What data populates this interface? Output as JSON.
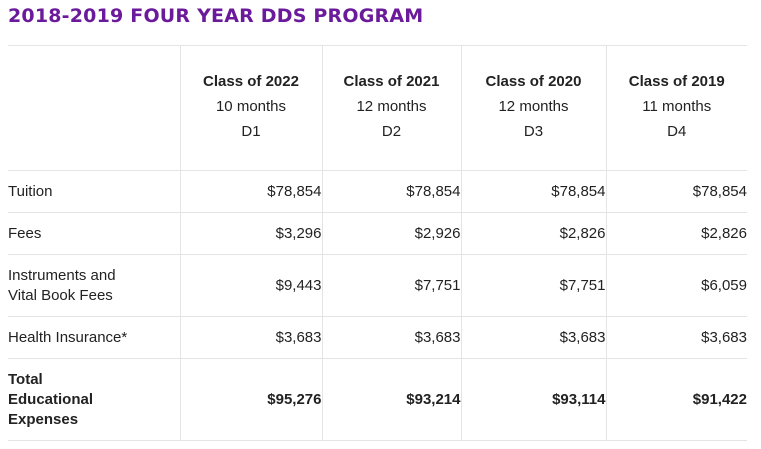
{
  "title": "2018-2019 FOUR YEAR DDS PROGRAM",
  "columns": [
    {
      "class": "Class of 2022",
      "duration": "10 months",
      "code": "D1"
    },
    {
      "class": "Class of 2021",
      "duration": "12 months",
      "code": "D2"
    },
    {
      "class": "Class of 2020",
      "duration": "12 months",
      "code": "D3"
    },
    {
      "class": "Class of 2019",
      "duration": "11 months",
      "code": "D4"
    }
  ],
  "rows": [
    {
      "label": "Tuition",
      "values": [
        "$78,854",
        "$78,854",
        "$78,854",
        "$78,854"
      ]
    },
    {
      "label": "Fees",
      "values": [
        "$3,296",
        "$2,926",
        "$2,826",
        "$2,826"
      ]
    },
    {
      "label_line1": "Instruments and",
      "label_line2": "Vital Book Fees",
      "values": [
        "$9,443",
        "$7,751",
        "$7,751",
        "$6,059"
      ]
    },
    {
      "label": "Health Insurance*",
      "values": [
        "$3,683",
        "$3,683",
        "$3,683",
        "$3,683"
      ]
    },
    {
      "label_line1": "Total",
      "label_line2": "Educational",
      "label_line3": "Expenses",
      "values": [
        "$95,276",
        "$93,214",
        "$93,114",
        "$91,422"
      ]
    }
  ],
  "colors": {
    "title": "#6a1a9a",
    "text": "#222222",
    "grid": "#e4e4e4"
  }
}
